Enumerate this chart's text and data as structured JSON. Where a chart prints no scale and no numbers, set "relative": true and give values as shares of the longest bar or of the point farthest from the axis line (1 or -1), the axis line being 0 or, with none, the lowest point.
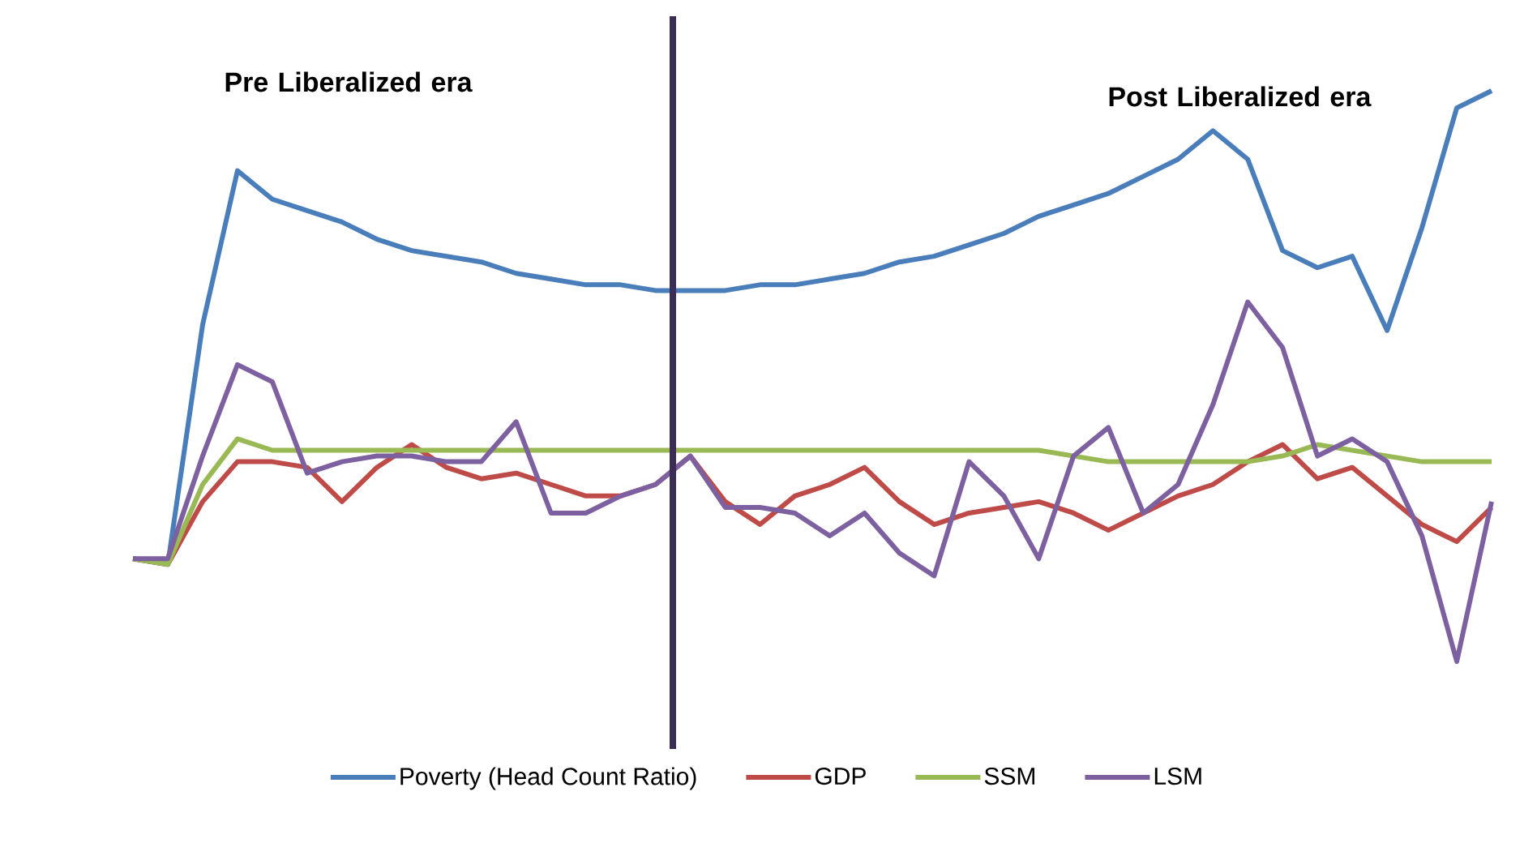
{
  "chart_data": {
    "type": "line",
    "relative": true,
    "legend": "bottom",
    "marker": "none",
    "line_style": "solid",
    "annotations": [
      "Pre Liberalized era",
      "Post Liberalized era"
    ],
    "categories": [
      null,
      null,
      null,
      null,
      null,
      null,
      null,
      null,
      null,
      null,
      null,
      null,
      null,
      null,
      null,
      null,
      null,
      null,
      null,
      null,
      null,
      null,
      null,
      null,
      null,
      null,
      null,
      null,
      null,
      null,
      null,
      null,
      null,
      null,
      null,
      null,
      null,
      null,
      null,
      null
    ],
    "series": [
      {
        "name": "Poverty (Head Count Ratio)",
        "color": "#4a7ebb",
        "values": [
          0.18,
          0.17,
          0.59,
          0.86,
          0.81,
          0.79,
          0.77,
          0.74,
          0.72,
          0.71,
          0.7,
          0.68,
          0.67,
          0.66,
          0.66,
          0.65,
          0.65,
          0.65,
          0.66,
          0.66,
          0.67,
          0.68,
          0.7,
          0.71,
          0.73,
          0.75,
          0.78,
          0.8,
          0.82,
          0.85,
          0.88,
          0.93,
          0.88,
          0.72,
          0.69,
          0.71,
          0.58,
          0.76,
          0.97,
          1
        ]
      },
      {
        "name": "GDP",
        "color": "#be4b48",
        "values": [
          0.18,
          0.17,
          0.28,
          0.35,
          0.35,
          0.34,
          0.28,
          0.34,
          0.38,
          0.34,
          0.32,
          0.33,
          0.31,
          0.29,
          0.29,
          0.31,
          0.36,
          0.28,
          0.24,
          0.29,
          0.31,
          0.34,
          0.28,
          0.24,
          0.26,
          0.27,
          0.28,
          0.26,
          0.23,
          0.26,
          0.29,
          0.31,
          0.35,
          0.38,
          0.32,
          0.34,
          0.29,
          0.24,
          0.21,
          0.27
        ]
      },
      {
        "name": "SSM",
        "color": "#98b954",
        "values": [
          0.18,
          0.17,
          0.31,
          0.39,
          0.37,
          0.37,
          0.37,
          0.37,
          0.37,
          0.37,
          0.37,
          0.37,
          0.37,
          0.37,
          0.37,
          0.37,
          0.37,
          0.37,
          0.37,
          0.37,
          0.37,
          0.37,
          0.37,
          0.37,
          0.37,
          0.37,
          0.37,
          0.36,
          0.35,
          0.35,
          0.35,
          0.35,
          0.35,
          0.36,
          0.38,
          0.37,
          0.36,
          0.35,
          0.35,
          0.35
        ]
      },
      {
        "name": "LSM",
        "color": "#7d60a0",
        "values": [
          0.18,
          0.18,
          0.36,
          0.52,
          0.49,
          0.33,
          0.35,
          0.36,
          0.36,
          0.35,
          0.35,
          0.42,
          0.26,
          0.26,
          0.29,
          0.31,
          0.36,
          0.27,
          0.27,
          0.26,
          0.22,
          0.26,
          0.19,
          0.15,
          0.35,
          0.29,
          0.18,
          0.36,
          0.41,
          0.26,
          0.31,
          0.45,
          0.63,
          0.55,
          0.36,
          0.39,
          0.35,
          0.22,
          0,
          0.28
        ]
      }
    ]
  }
}
